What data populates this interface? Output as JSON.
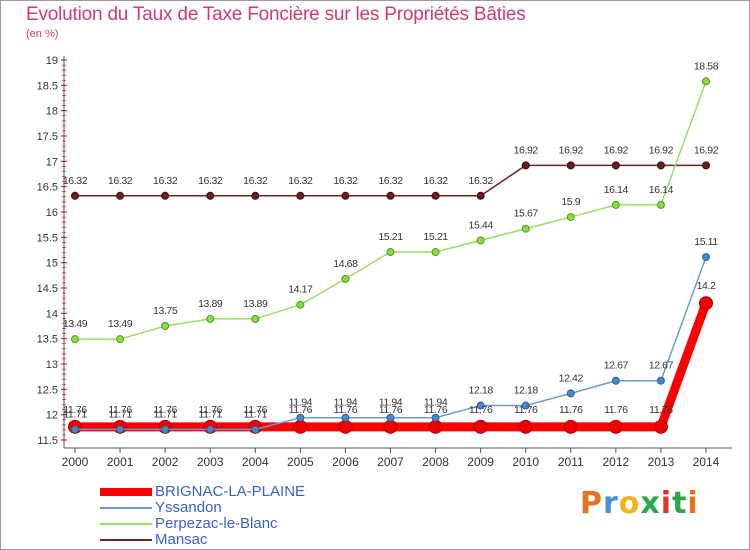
{
  "header": {
    "title": "Evolution du Taux de Taxe Foncière sur les Propriétés Bâties",
    "unit": "(en %)"
  },
  "logo": {
    "letters": [
      "P",
      "r",
      "o",
      "x",
      "i",
      "t",
      "i"
    ],
    "colors": [
      "#e8711c",
      "#4a8fd6",
      "#f2b11b",
      "#2aa84a",
      "#d9372b",
      "#2aa84a",
      "#e8711c"
    ]
  },
  "chart_data": {
    "type": "line",
    "title": "Evolution du Taux de Taxe Foncière sur les Propriétés Bâties",
    "ylabel": "(en %)",
    "xlabel": "",
    "ylim": [
      11.5,
      19
    ],
    "yticks": [
      "11.5",
      "12",
      "12.5",
      "13",
      "13.5",
      "14",
      "14.5",
      "15",
      "15.5",
      "16",
      "16.5",
      "17",
      "17.5",
      "18",
      "18.5",
      "19"
    ],
    "categories": [
      "2000",
      "2001",
      "2002",
      "2003",
      "2004",
      "2005",
      "2006",
      "2007",
      "2008",
      "2009",
      "2010",
      "2011",
      "2012",
      "2013",
      "2014"
    ],
    "series": [
      {
        "name": "BRIGNAC-LA-PLAINE",
        "color": "#ff0000",
        "values": [
          11.76,
          11.76,
          11.76,
          11.76,
          11.76,
          11.76,
          11.76,
          11.76,
          11.76,
          11.76,
          11.76,
          11.76,
          11.76,
          11.76,
          14.2
        ],
        "labels": [
          "11.76",
          "11.76",
          "11.76",
          "11.76",
          "11.76",
          "11.76",
          "11.76",
          "11.76",
          "11.76",
          "11.76",
          "11.76",
          "11.76",
          "11.76",
          "11.76",
          "14.2"
        ]
      },
      {
        "name": "Yssandon",
        "color": "#6a9bd0",
        "values": [
          11.71,
          11.71,
          11.71,
          11.71,
          11.71,
          11.94,
          11.94,
          11.94,
          11.94,
          12.18,
          12.18,
          12.42,
          12.67,
          12.67,
          15.11
        ],
        "labels": [
          "11.71",
          "11.71",
          "11.71",
          "11.71",
          "11.71",
          "11.94",
          "11.94",
          "11.94",
          "11.94",
          "12.18",
          "12.18",
          "12.42",
          "12.67",
          "12.67",
          "15.11"
        ]
      },
      {
        "name": "Perpezac-le-Blanc",
        "color": "#99dd66",
        "values": [
          13.49,
          13.49,
          13.75,
          13.89,
          13.89,
          14.17,
          14.68,
          15.21,
          15.21,
          15.44,
          15.67,
          15.9,
          16.14,
          16.14,
          18.58
        ],
        "labels": [
          "13.49",
          "13.49",
          "13.75",
          "13.89",
          "13.89",
          "14.17",
          "14.68",
          "15.21",
          "15.21",
          "15.44",
          "15.67",
          "15.9",
          "16.14",
          "16.14",
          "18.58"
        ]
      },
      {
        "name": "Mansac",
        "color": "#6a2424",
        "values": [
          16.32,
          16.32,
          16.32,
          16.32,
          16.32,
          16.32,
          16.32,
          16.32,
          16.32,
          16.32,
          16.92,
          16.92,
          16.92,
          16.92,
          16.92
        ],
        "labels": [
          "16.32",
          "16.32",
          "16.32",
          "16.32",
          "16.32",
          "16.32",
          "16.32",
          "16.32",
          "16.32",
          "16.32",
          "16.92",
          "16.92",
          "16.92",
          "16.92",
          "16.92"
        ]
      }
    ],
    "legend_position": "bottom-left",
    "grid": false
  }
}
